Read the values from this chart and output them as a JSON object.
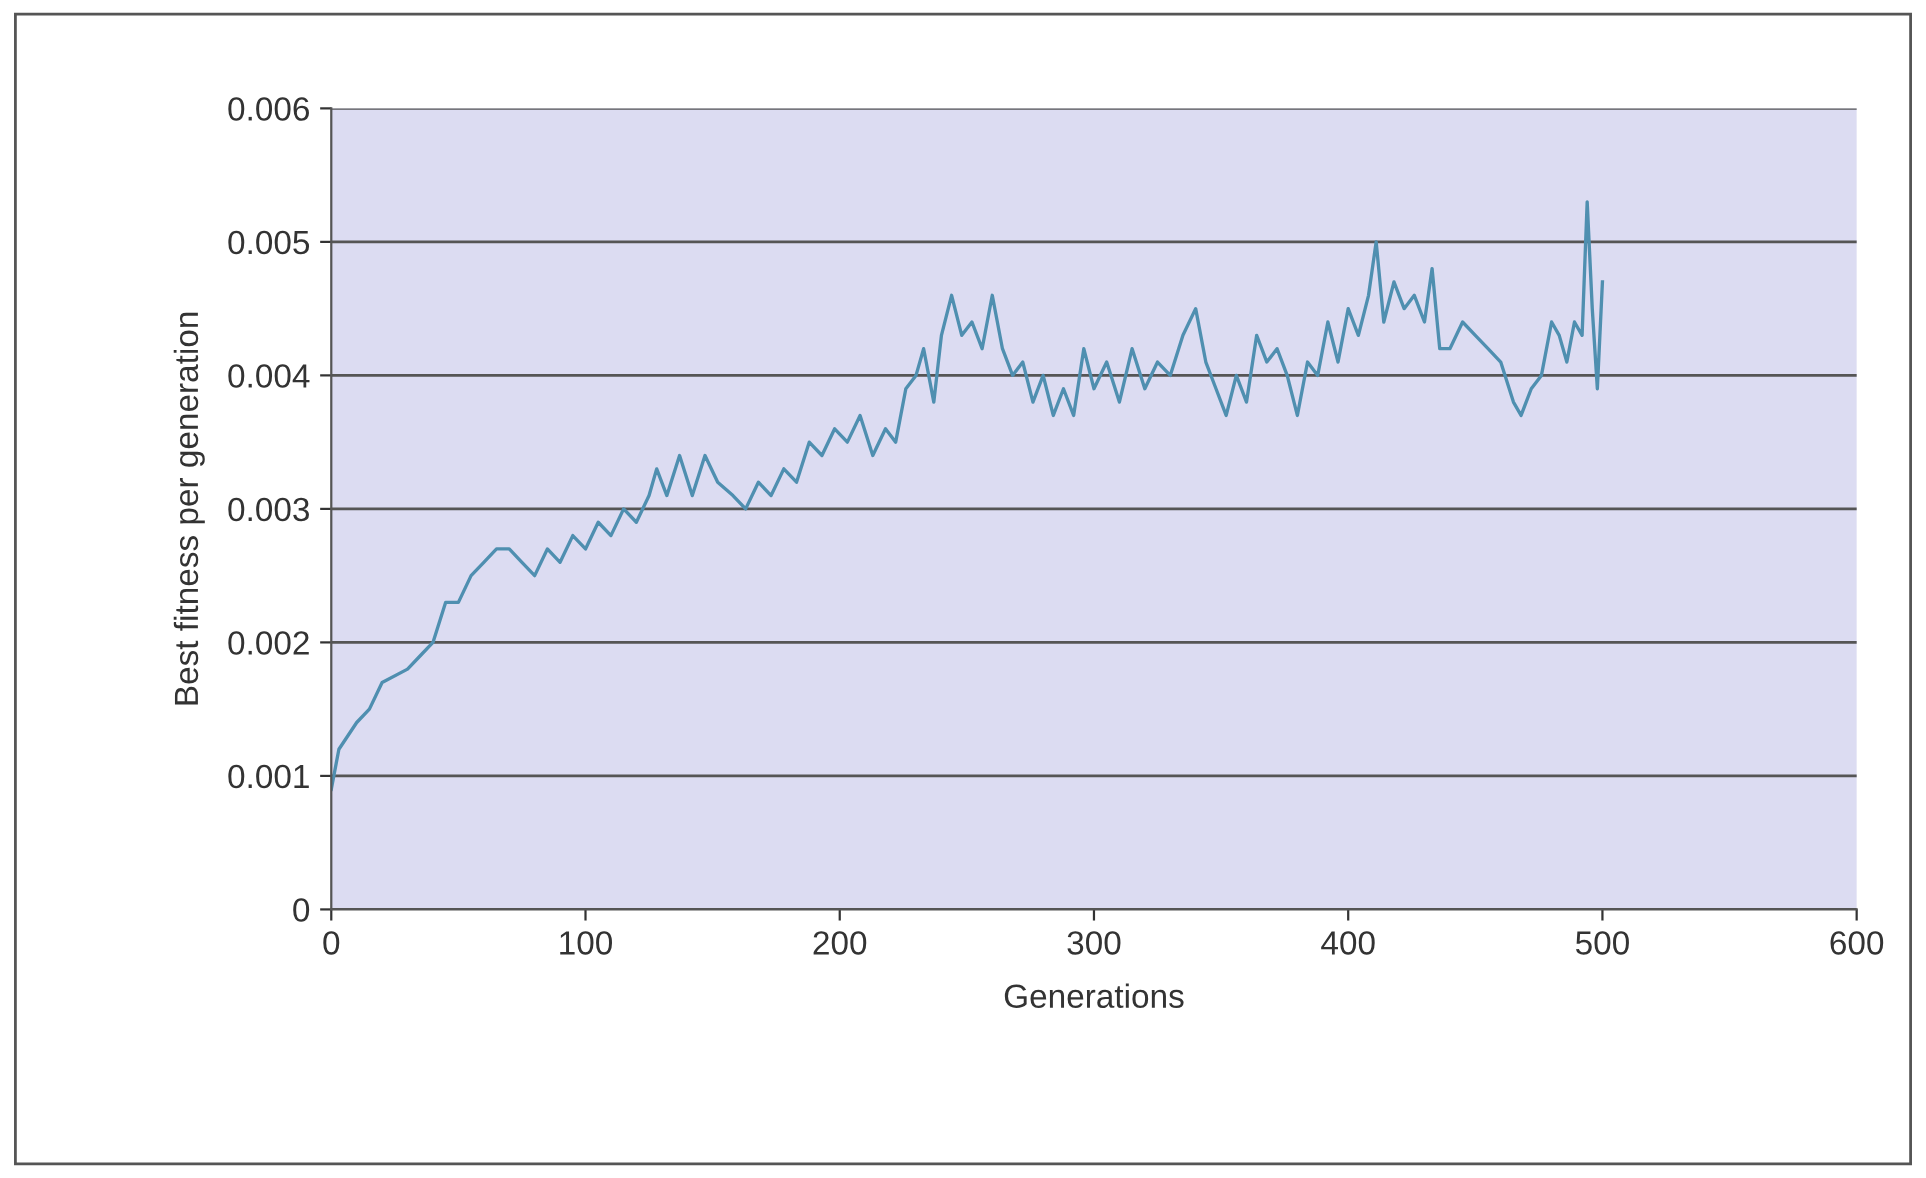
{
  "chart_data": {
    "type": "line",
    "xlabel": "Generations",
    "ylabel": "Best fitness per generation",
    "xlim": [
      0,
      600
    ],
    "xticks": [
      0,
      100,
      200,
      300,
      400,
      500,
      600
    ],
    "ylim": [
      0,
      0.006
    ],
    "yticks": [
      {
        "value": 0,
        "label": "0"
      },
      {
        "value": 0.001,
        "label": "0.001"
      },
      {
        "value": 0.002,
        "label": "0.002"
      },
      {
        "value": 0.003,
        "label": "0.003"
      },
      {
        "value": 0.004,
        "label": "0.004"
      },
      {
        "value": 0.005,
        "label": "0.005"
      },
      {
        "value": 0.006,
        "label": "0.006"
      }
    ],
    "grid": "y",
    "marker": "none",
    "line_style": "solid",
    "series": [
      {
        "color": "#4f8fb0",
        "x": [
          0,
          3,
          10,
          15,
          20,
          30,
          35,
          40,
          45,
          50,
          55,
          60,
          65,
          70,
          75,
          80,
          85,
          90,
          95,
          100,
          105,
          110,
          115,
          120,
          125,
          128,
          132,
          137,
          142,
          147,
          152,
          158,
          163,
          168,
          173,
          178,
          183,
          188,
          193,
          198,
          203,
          208,
          213,
          218,
          222,
          226,
          230,
          233,
          237,
          240,
          244,
          248,
          252,
          256,
          260,
          264,
          268,
          272,
          276,
          280,
          284,
          288,
          292,
          296,
          300,
          305,
          310,
          315,
          320,
          325,
          330,
          335,
          340,
          344,
          348,
          352,
          356,
          360,
          364,
          368,
          372,
          376,
          380,
          384,
          388,
          392,
          396,
          400,
          404,
          408,
          411,
          414,
          418,
          422,
          426,
          430,
          433,
          436,
          440,
          445,
          450,
          455,
          460,
          465,
          468,
          472,
          476,
          480,
          483,
          486,
          489,
          492,
          494,
          496,
          498,
          500
        ],
        "values": [
          0.0009,
          0.0012,
          0.0014,
          0.0015,
          0.0017,
          0.0018,
          0.0019,
          0.002,
          0.0023,
          0.0023,
          0.0025,
          0.0026,
          0.0027,
          0.0027,
          0.0026,
          0.0025,
          0.0027,
          0.0026,
          0.0028,
          0.0027,
          0.0029,
          0.0028,
          0.003,
          0.0029,
          0.0031,
          0.0033,
          0.0031,
          0.0034,
          0.0031,
          0.0034,
          0.0032,
          0.0031,
          0.003,
          0.0032,
          0.0031,
          0.0033,
          0.0032,
          0.0035,
          0.0034,
          0.0036,
          0.0035,
          0.0037,
          0.0034,
          0.0036,
          0.0035,
          0.0039,
          0.004,
          0.0042,
          0.0038,
          0.0043,
          0.0046,
          0.0043,
          0.0044,
          0.0042,
          0.0046,
          0.0042,
          0.004,
          0.0041,
          0.0038,
          0.004,
          0.0037,
          0.0039,
          0.0037,
          0.0042,
          0.0039,
          0.0041,
          0.0038,
          0.0042,
          0.0039,
          0.0041,
          0.004,
          0.0043,
          0.0045,
          0.0041,
          0.0039,
          0.0037,
          0.004,
          0.0038,
          0.0043,
          0.0041,
          0.0042,
          0.004,
          0.0037,
          0.0041,
          0.004,
          0.0044,
          0.0041,
          0.0045,
          0.0043,
          0.0046,
          0.005,
          0.0044,
          0.0047,
          0.0045,
          0.0046,
          0.0044,
          0.0048,
          0.0042,
          0.0042,
          0.0044,
          0.0043,
          0.0042,
          0.0041,
          0.0038,
          0.0037,
          0.0039,
          0.004,
          0.0044,
          0.0043,
          0.0041,
          0.0044,
          0.0043,
          0.0053,
          0.0045,
          0.0039,
          0.0047
        ]
      }
    ]
  }
}
